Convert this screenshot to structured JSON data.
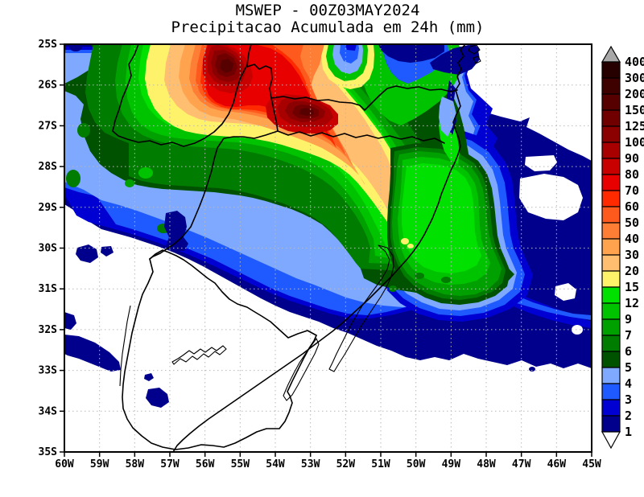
{
  "title": {
    "line1": "MSWEP - 00Z03MAY2024",
    "line2": "Precipitacao Acumulada em 24h (mm)"
  },
  "axes": {
    "x_tick_labels": [
      "60W",
      "59W",
      "58W",
      "57W",
      "56W",
      "55W",
      "54W",
      "53W",
      "52W",
      "51W",
      "50W",
      "49W",
      "48W",
      "47W",
      "46W",
      "45W"
    ],
    "y_tick_labels": [
      "25S",
      "26S",
      "27S",
      "28S",
      "29S",
      "30S",
      "31S",
      "32S",
      "33S",
      "34S",
      "35S"
    ]
  },
  "colorbar": {
    "values_top_to_bottom": [
      "400",
      "300",
      "200",
      "150",
      "125",
      "100",
      "90",
      "80",
      "70",
      "60",
      "50",
      "40",
      "30",
      "20",
      "15",
      "12",
      "9",
      "7",
      "6",
      "5",
      "4",
      "3",
      "2",
      "1"
    ],
    "segment_colors_top_to_bottom": [
      "#260000",
      "#3F0000",
      "#570000",
      "#700000",
      "#8B0000",
      "#A80000",
      "#C80000",
      "#E80000",
      "#FF2A00",
      "#FF5A1E",
      "#FF7E36",
      "#FFA34F",
      "#FFBE70",
      "#FFF26B",
      "#00E100",
      "#00C300",
      "#00A000",
      "#007C00",
      "#005200",
      "#7FA8FF",
      "#1E5AFF",
      "#0000D2",
      "#00008C"
    ],
    "over_arrow_color": "#A8A8A8",
    "under_arrow_color": "#FFFFFF"
  },
  "palette": {
    "1": "#00008C",
    "2": "#0000D2",
    "3": "#1E5AFF",
    "4": "#7FA8FF",
    "5": "#005200",
    "6": "#007C00",
    "7": "#00A000",
    "9": "#00C300",
    "12": "#00E100",
    "15": "#FFF26B",
    "20": "#FFBE70",
    "30": "#FFA34F",
    "40": "#FF7E36",
    "50": "#FF5A1E",
    "60": "#FF2A00",
    "70": "#E80000",
    "80": "#C80000",
    "90": "#A80000",
    "100": "#8B0000",
    "125": "#700000",
    "150": "#570000",
    "white": "#FFFFFF"
  },
  "chart_data": {
    "type": "heatmap",
    "title": "MSWEP - 00Z03MAY2024 / Precipitacao Acumulada em 24h (mm)",
    "units": "mm",
    "lon_range_deg_west": [
      60,
      45
    ],
    "lat_range_deg_south": [
      25,
      35
    ],
    "grid_spacing_deg": 1,
    "levels_mm": [
      1,
      2,
      3,
      4,
      5,
      6,
      7,
      9,
      12,
      15,
      20,
      30,
      40,
      50,
      60,
      70,
      80,
      90,
      100,
      125,
      150,
      200,
      300,
      400
    ],
    "legend_position": "right",
    "grid": true,
    "features": [
      {
        "name": "primary-rain-band",
        "description": "Elongated WNW-ESE heavy rain band over far southern Brazil / Misiones",
        "approx_extent": "56W-51.5W, 25S-27.5S",
        "peak_value_mm": "150-200",
        "core_centers": [
          {
            "lon": "54.5W",
            "lat": "25.8S"
          },
          {
            "lon": "52.2W",
            "lat": "26.8S"
          }
        ]
      },
      {
        "name": "secondary-maximum-offshore",
        "description": "Green maximum (9-15 mm, small 15-20 mm specks) over the Atlantic off Rio Grande do Sul",
        "approx_extent": "50.5W-47.5W, 28S-31.5S",
        "peak_value_mm": "15-20"
      },
      {
        "name": "local-minimum-hole",
        "description": "Small 3-5 mm minimum embedded in the orange field near the top edge",
        "approx_center": "52W 25.3S"
      },
      {
        "name": "dry-region",
        "description": "Uruguay and the far south mostly below 1 mm with scattered 1-2 mm patches",
        "approx_extent": "south of ~30S"
      },
      {
        "name": "ocean-light-rain-shield",
        "description": "1-3 mm shield over the Atlantic east and southeast of the coast with embedded dry holes",
        "approx_extent": "49W-45W, 27S-32S"
      }
    ]
  }
}
